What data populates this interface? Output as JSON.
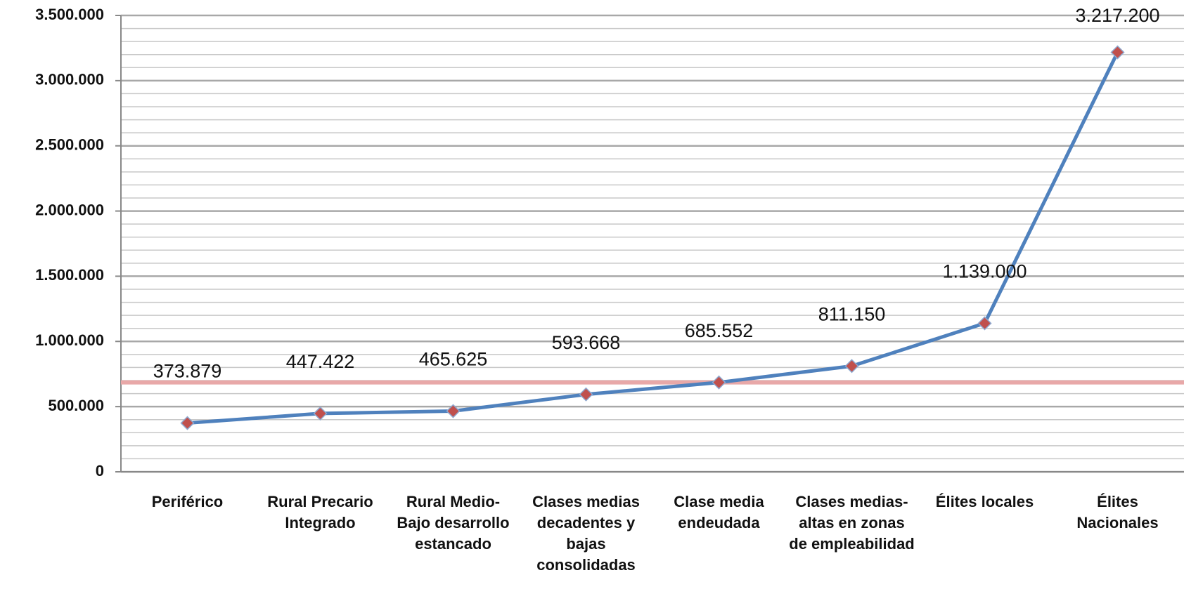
{
  "chart_data": {
    "type": "line",
    "categories": [
      "Periférico",
      "Rural Precario Integrado",
      "Rural Medio-Bajo desarrollo estancado",
      "Clases medias decadentes y bajas consolidadas",
      "Clase media endeudada",
      "Clases medias-altas en zonas de empleabilidad",
      "Élites locales",
      "Élites Nacionales"
    ],
    "series": [
      {
        "color": "#4f81bd",
        "marker_color": "#c0504d",
        "values": [
          373879,
          447422,
          465625,
          593668,
          685552,
          811150,
          1139000,
          3217200
        ],
        "value_labels": [
          "373.879",
          "447.422",
          "465.625",
          "593.668",
          "685.552",
          "811.150",
          "1.139.000",
          "3.217.200"
        ]
      }
    ],
    "ylim": [
      0,
      3500000
    ],
    "yticks": [
      0,
      {
        "value": 500000,
        "label": "500.000"
      },
      {
        "value": 1000000,
        "label": "1.000.000"
      },
      {
        "value": 1500000,
        "label": "1.500.000"
      },
      {
        "value": 2000000,
        "label": "2.000.000"
      },
      {
        "value": 2500000,
        "label": "2.500.000"
      },
      {
        "value": 3000000,
        "label": "3.000.000"
      },
      {
        "value": 3500000,
        "label": "3.500.000"
      }
    ],
    "grid": true,
    "minor_grid": 100000,
    "reference_line": {
      "value": 685552,
      "color": "#e8a8a8"
    }
  }
}
